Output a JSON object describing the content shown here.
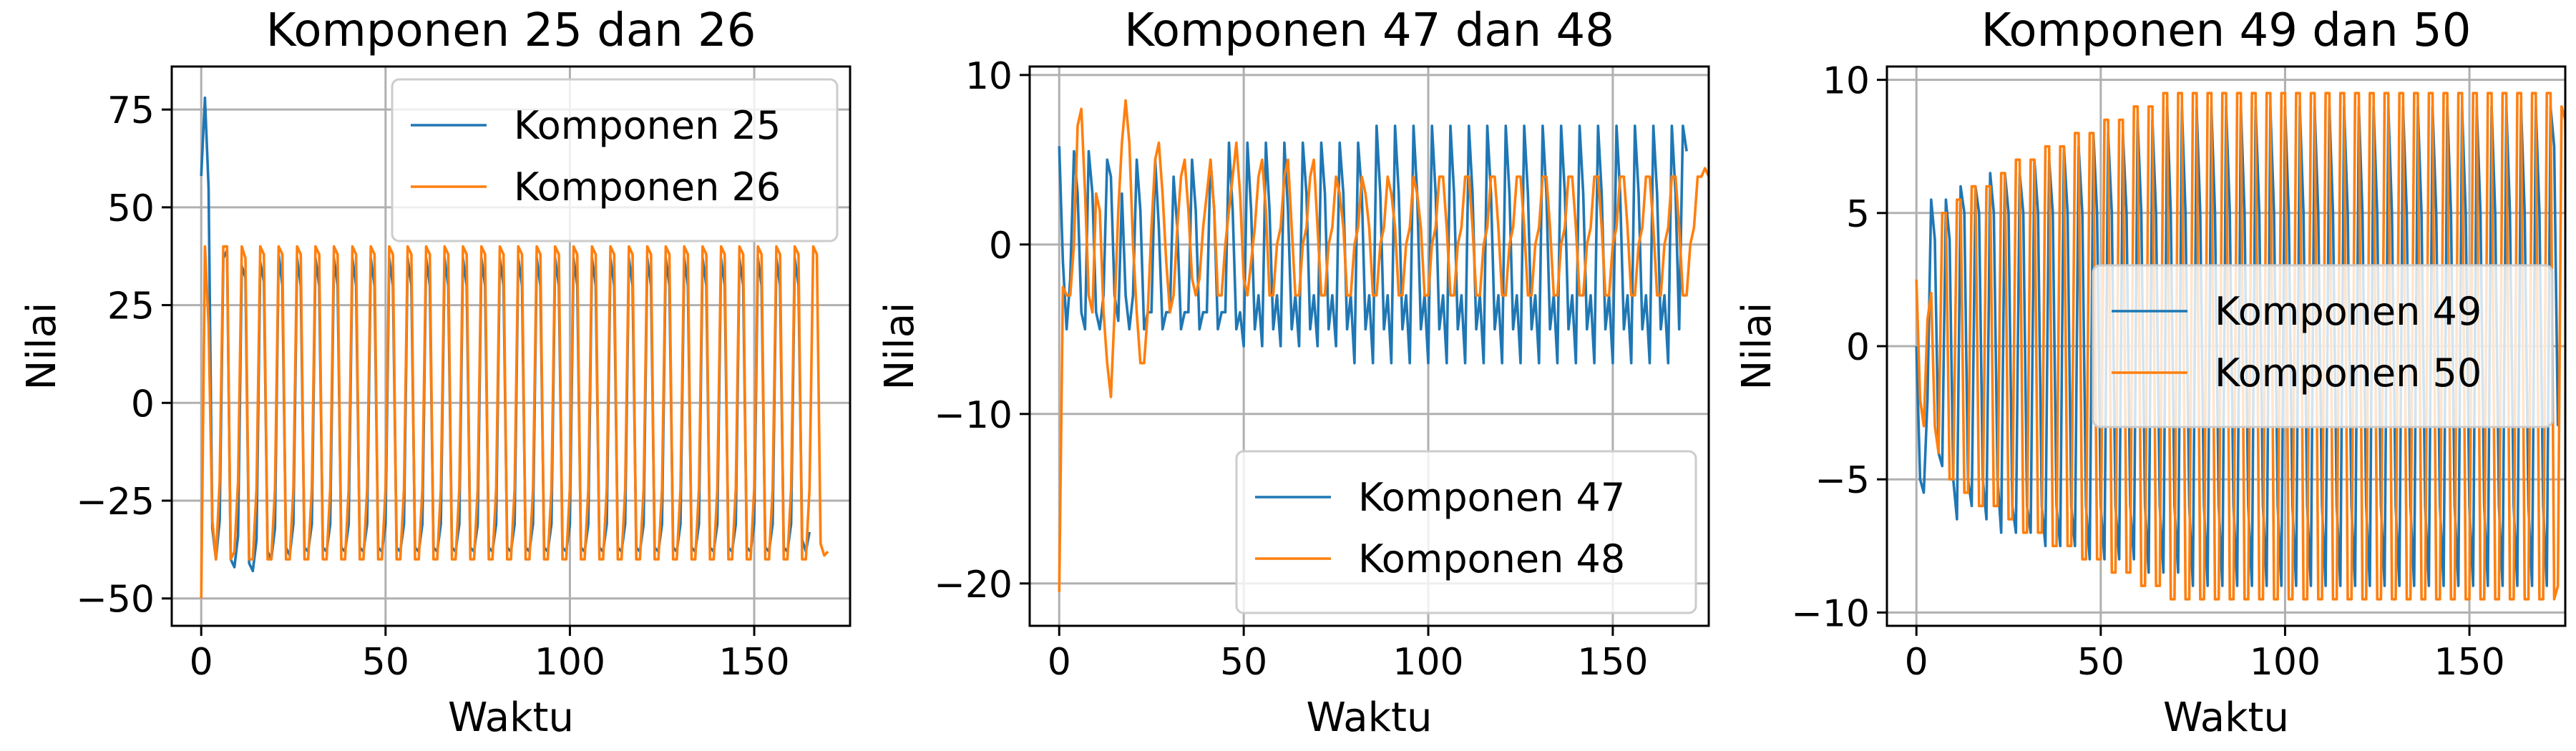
{
  "chart_data": [
    {
      "type": "line",
      "title": "Komponen 25 dan 26",
      "xlabel": "Waktu",
      "ylabel": "Nilai",
      "xlim": [
        -8,
        176
      ],
      "ylim": [
        -57,
        86
      ],
      "xticks": [
        0,
        50,
        100,
        150
      ],
      "yticks": [
        -50,
        -25,
        0,
        25,
        50,
        75
      ],
      "ytick_labels": [
        "−50",
        "−25",
        "0",
        "25",
        "50",
        "75"
      ],
      "grid": true,
      "legend_position": "upper right",
      "series": [
        {
          "name": "Komponen 25",
          "color": "#1f77b4",
          "x_start": 0,
          "x_step": 1,
          "values": [
            58,
            78,
            55,
            -32,
            -40,
            -30,
            37,
            39,
            -40,
            -42,
            -34,
            35,
            32,
            -41,
            -43,
            -35,
            36,
            31,
            -38,
            -40,
            -32,
            38,
            30,
            -37,
            -39,
            -31,
            37,
            30,
            -37,
            -38,
            -31,
            37,
            30,
            -37,
            -38,
            -31,
            37,
            30,
            -37,
            -38,
            -31,
            37,
            30,
            -37,
            -38,
            -31,
            37,
            30,
            -37,
            -38,
            -31,
            37,
            30,
            -37,
            -38,
            -31,
            37,
            30,
            -37,
            -38,
            -31,
            37,
            30,
            -37,
            -38,
            -31,
            37,
            30,
            -37,
            -38,
            -31,
            37,
            30,
            -37,
            -38,
            -31,
            37,
            30,
            -37,
            -38,
            -31,
            37,
            30,
            -37,
            -38,
            -31,
            37,
            30,
            -37,
            -38,
            -31,
            37,
            30,
            -37,
            -38,
            -31,
            37,
            30,
            -37,
            -38,
            -31,
            37,
            30,
            -37,
            -38,
            -31,
            37,
            30,
            -37,
            -38,
            -31,
            37,
            30,
            -37,
            -38,
            -31,
            37,
            30,
            -37,
            -38,
            -31,
            37,
            30,
            -37,
            -38,
            -31,
            37,
            30,
            -37,
            -38,
            -31,
            37,
            30,
            -37,
            -38,
            -31,
            37,
            30,
            -37,
            -38,
            -31,
            37,
            30,
            -37,
            -38,
            -31,
            37,
            30,
            -37,
            -38,
            -31,
            37,
            30,
            -37,
            -38,
            -31,
            37,
            30,
            -37,
            -38,
            -31,
            37,
            30,
            -35,
            -38,
            -33
          ]
        },
        {
          "name": "Komponen 26",
          "color": "#ff7f0e",
          "x_start": 0,
          "x_step": 1,
          "values": [
            -50,
            40,
            20,
            -30,
            -40,
            -20,
            40,
            40,
            -40,
            -38,
            -20,
            40,
            37,
            -40,
            -40,
            -22,
            40,
            38,
            -40,
            -40,
            -22,
            40,
            38,
            -40,
            -40,
            -22,
            40,
            38,
            -40,
            -40,
            -22,
            40,
            38,
            -40,
            -40,
            -22,
            40,
            38,
            -40,
            -40,
            -22,
            40,
            38,
            -40,
            -40,
            -22,
            40,
            38,
            -40,
            -40,
            -22,
            40,
            38,
            -40,
            -40,
            -22,
            40,
            38,
            -40,
            -40,
            -22,
            40,
            38,
            -40,
            -40,
            -22,
            40,
            38,
            -40,
            -40,
            -22,
            40,
            38,
            -40,
            -40,
            -22,
            40,
            38,
            -40,
            -40,
            -22,
            40,
            38,
            -40,
            -40,
            -22,
            40,
            38,
            -40,
            -40,
            -22,
            40,
            38,
            -40,
            -40,
            -22,
            40,
            38,
            -40,
            -40,
            -22,
            40,
            38,
            -40,
            -40,
            -22,
            40,
            38,
            -40,
            -40,
            -22,
            40,
            38,
            -40,
            -40,
            -22,
            40,
            38,
            -40,
            -40,
            -22,
            40,
            38,
            -40,
            -40,
            -22,
            40,
            38,
            -40,
            -40,
            -22,
            40,
            38,
            -40,
            -40,
            -22,
            40,
            38,
            -40,
            -40,
            -22,
            40,
            38,
            -40,
            -40,
            -22,
            40,
            38,
            -40,
            -40,
            -22,
            40,
            38,
            -40,
            -40,
            -22,
            40,
            38,
            -40,
            -40,
            -22,
            40,
            38,
            -40,
            -40,
            -22,
            40,
            38,
            -36,
            -39,
            -38
          ]
        }
      ]
    },
    {
      "type": "line",
      "title": "Komponen 47 dan 48",
      "xlabel": "Waktu",
      "ylabel": "Nilai",
      "xlim": [
        -8,
        176
      ],
      "ylim": [
        -22.5,
        10.5
      ],
      "xticks": [
        0,
        50,
        100,
        150
      ],
      "yticks": [
        -20,
        -10,
        0,
        10
      ],
      "ytick_labels": [
        "−20",
        "−10",
        "0",
        "10"
      ],
      "grid": true,
      "legend_position": "lower right",
      "series": [
        {
          "name": "Komponen 47",
          "color": "#1f77b4",
          "x_start": 0,
          "x_step": 1,
          "values": [
            5.8,
            -1,
            -5,
            -2,
            5.5,
            3,
            -4,
            -5,
            5.5,
            3,
            -4,
            -5,
            -3,
            5,
            4,
            -3,
            -4.5,
            3,
            -3,
            -5,
            -3,
            5,
            2,
            -5,
            -4,
            -4,
            5,
            1,
            -5,
            -4,
            -4,
            4,
            1,
            -5,
            -4,
            -4,
            5,
            2,
            -5,
            -4,
            -4,
            5,
            2,
            -5,
            -4,
            -4,
            6,
            2,
            -5,
            -4,
            -6,
            6,
            2,
            -5,
            -3,
            -6,
            6,
            2,
            -5,
            -3,
            -6,
            6,
            2,
            -5,
            -3,
            -6,
            6,
            3,
            -5,
            -3,
            -6,
            6,
            3,
            -5,
            -3,
            -6,
            6,
            3,
            -5,
            -3,
            -7,
            6,
            3,
            -5,
            -3,
            -7,
            7,
            3,
            -5,
            -3,
            -7,
            7,
            3,
            -5,
            -3,
            -7,
            7,
            3,
            -5,
            -3,
            -7,
            7,
            3,
            -5,
            -3,
            -7,
            7,
            3,
            -5,
            -3,
            -7,
            7,
            3,
            -5,
            -3,
            -7,
            7,
            3,
            -5,
            -3,
            -7,
            7,
            3,
            -5,
            -3,
            -7,
            7,
            3,
            -5,
            -3,
            -7,
            7,
            3,
            -5,
            -3,
            -7,
            7,
            3,
            -5,
            -3,
            -7,
            7,
            3,
            -5,
            -3,
            -7,
            7,
            3,
            -5,
            -3,
            -7,
            7,
            3,
            -5,
            -3,
            -7,
            7,
            3,
            -5,
            -3,
            -7,
            7,
            3,
            -5,
            -3,
            -7,
            7,
            3,
            -5,
            7,
            5.5
          ]
        },
        {
          "name": "Komponen 48",
          "color": "#ff7f0e",
          "x_start": 0,
          "x_step": 1,
          "values": [
            -20.5,
            -2.5,
            -3,
            -3,
            0,
            7,
            8,
            3,
            -3,
            -4,
            3,
            2,
            -4,
            -7,
            -9,
            -4,
            2,
            6,
            8.5,
            6,
            0,
            -4,
            -7,
            -7,
            -4,
            1,
            5,
            6,
            3,
            -1,
            -4,
            -3,
            1,
            4,
            5,
            2,
            -2,
            -3,
            -2,
            1,
            3,
            5,
            2,
            -3,
            -3,
            0,
            2,
            4,
            6,
            3,
            -2,
            -3,
            -1,
            1,
            4,
            5,
            2,
            -3,
            -3,
            0,
            1,
            4,
            5,
            1,
            -3,
            -3,
            0,
            1,
            4,
            5,
            1,
            -3,
            -3,
            0,
            1,
            4,
            3,
            1,
            -3,
            -3,
            0,
            1,
            4,
            3,
            1,
            -3,
            -3,
            0,
            1,
            4,
            3,
            1,
            -3,
            -3,
            0,
            1,
            4,
            3,
            1,
            -3,
            -3,
            0,
            1,
            4,
            4,
            1,
            -3,
            -3,
            0,
            1,
            4,
            4,
            1,
            -3,
            -3,
            0,
            1,
            4,
            4,
            1,
            -3,
            -3,
            0,
            1,
            4,
            4,
            1,
            -3,
            -3,
            0,
            1,
            4,
            4,
            1,
            -3,
            -3,
            0,
            1,
            4,
            4,
            1,
            -3,
            -3,
            0,
            1,
            4,
            4,
            1,
            -3,
            -3,
            0,
            1,
            4,
            4,
            1,
            -3,
            -3,
            0,
            1,
            4,
            4,
            1,
            -3,
            -3,
            0,
            1,
            4,
            4,
            1,
            -3,
            -3,
            0,
            1,
            4,
            4,
            4.5,
            4
          ]
        }
      ]
    },
    {
      "type": "line",
      "title": "Komponen 49 dan 50",
      "xlabel": "Waktu",
      "ylabel": "Nilai",
      "xlim": [
        -8,
        176
      ],
      "ylim": [
        -10.5,
        10.5
      ],
      "xticks": [
        0,
        50,
        100,
        150
      ],
      "yticks": [
        -10,
        -5,
        0,
        5,
        10
      ],
      "ytick_labels": [
        "−10",
        "−5",
        "0",
        "5",
        "10"
      ],
      "grid": true,
      "legend_position": "center right",
      "series": [
        {
          "name": "Komponen 49",
          "color": "#1f77b4",
          "x_start": 0,
          "x_step": 1,
          "values": [
            0,
            -5,
            -5.5,
            -2,
            5.5,
            4,
            -4,
            -4.5,
            5.5,
            4,
            -5,
            -6.5,
            6,
            5,
            -5,
            -6,
            6,
            5,
            -5,
            -6.5,
            6.5,
            5,
            -5,
            -7,
            6.5,
            5,
            -6,
            -7,
            6.5,
            5,
            -6,
            -7,
            7,
            5,
            -6,
            -7.5,
            7,
            5,
            -6,
            -7.5,
            7.5,
            5,
            -6,
            -7.5,
            7.5,
            5,
            -6,
            -8,
            8,
            5,
            -6,
            -8,
            8,
            5,
            -6,
            -8,
            8,
            5,
            -6,
            -8,
            8.5,
            5,
            -6,
            -8.5,
            8.5,
            5,
            -6,
            -8.5,
            9,
            5,
            -6,
            -8.5,
            9,
            5,
            -6,
            -9,
            9,
            5,
            -6,
            -9,
            9,
            5,
            -6,
            -9,
            9,
            5,
            -6,
            -9,
            9,
            5,
            -6,
            -9,
            9,
            5,
            -6,
            -9,
            9,
            5,
            -6,
            -9,
            9,
            5,
            -6,
            -9,
            9,
            5,
            -6,
            -9,
            9,
            5,
            -6,
            -9,
            9,
            5,
            -6,
            -9,
            9,
            5,
            -6,
            -9,
            9,
            5,
            -6,
            -9,
            9,
            5,
            -6,
            -9,
            9,
            5,
            -6,
            -9,
            9,
            5,
            -6,
            -9,
            9,
            5,
            -6,
            -9,
            9,
            5,
            -6,
            -9,
            9,
            5,
            -6,
            -9,
            9,
            5,
            -6,
            -9,
            9,
            5,
            -6,
            -9,
            9,
            5,
            -6,
            -9,
            9,
            5,
            -6,
            -9,
            9,
            5,
            -6,
            -9,
            9,
            5,
            -6,
            -9,
            9,
            7.5,
            -3
          ]
        },
        {
          "name": "Komponen 50",
          "color": "#ff7f0e",
          "x_start": 0,
          "x_step": 1,
          "values": [
            2.5,
            -2,
            -3,
            1,
            2,
            -3,
            -4,
            5,
            5,
            -5,
            -5,
            5.5,
            5.5,
            -5.5,
            -5.5,
            6,
            6,
            -6,
            -6,
            6,
            6,
            -6,
            -6,
            6.5,
            6.5,
            -6.5,
            -6.5,
            7,
            7,
            -7,
            -7,
            7,
            7,
            -7,
            -7,
            7.5,
            7.5,
            -7.5,
            -7.5,
            7.5,
            7.5,
            -7.5,
            -7.5,
            8,
            8,
            -8,
            -8,
            8,
            8,
            -8,
            -8,
            8.5,
            8.5,
            -8.5,
            -8.5,
            8.5,
            8.5,
            -8.5,
            -8.5,
            9,
            9,
            -9,
            -9,
            9,
            9,
            -9,
            -9,
            9.5,
            9.5,
            -9.5,
            -9.5,
            9.5,
            9.5,
            -9.5,
            -9.5,
            9.5,
            9.5,
            -9.5,
            -9.5,
            9.5,
            9.5,
            -9.5,
            -9.5,
            9.5,
            9.5,
            -9.5,
            -9.5,
            9.5,
            9.5,
            -9.5,
            -9.5,
            9.5,
            9.5,
            -9.5,
            -9.5,
            9.5,
            9.5,
            -9.5,
            -9.5,
            9.5,
            9.5,
            -9.5,
            -9.5,
            9.5,
            9.5,
            -9.5,
            -9.5,
            9.5,
            9.5,
            -9.5,
            -9.5,
            9.5,
            9.5,
            -9.5,
            -9.5,
            9.5,
            9.5,
            -9.5,
            -9.5,
            9.5,
            9.5,
            -9.5,
            -9.5,
            9.5,
            9.5,
            -9.5,
            -9.5,
            9.5,
            9.5,
            -9.5,
            -9.5,
            9.5,
            9.5,
            -9.5,
            -9.5,
            9.5,
            9.5,
            -9.5,
            -9.5,
            9.5,
            9.5,
            -9.5,
            -9.5,
            9.5,
            9.5,
            -9.5,
            -9.5,
            9.5,
            9.5,
            -9.5,
            -9.5,
            9.5,
            9.5,
            -9.5,
            -9.5,
            9.5,
            9.5,
            -9.5,
            -9.5,
            9.5,
            9.5,
            -9.5,
            -9.5,
            9.5,
            9.5,
            -9.5,
            -9.5,
            9.5,
            9.5,
            -9.5,
            -9.5,
            9.5,
            9.5,
            -9.5,
            -9,
            9,
            8.5,
            -3
          ]
        }
      ]
    }
  ]
}
